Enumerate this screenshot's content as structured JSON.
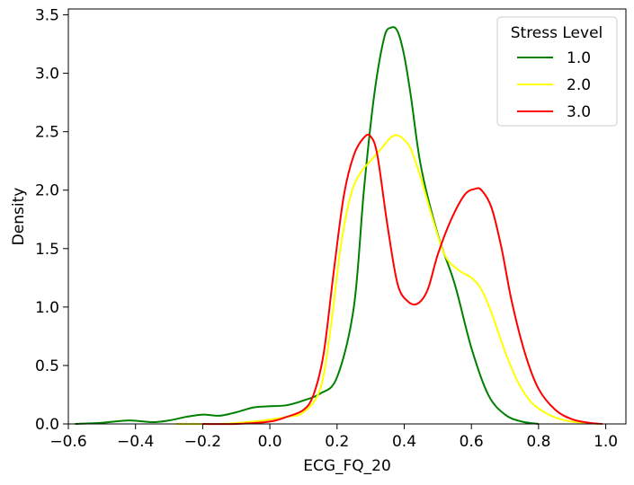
{
  "chart_data": {
    "type": "line",
    "xlabel": "ECG_FQ_20",
    "ylabel": "Density",
    "xlim": [
      -0.6,
      1.06
    ],
    "ylim": [
      0.0,
      3.55
    ],
    "xticks": [
      -0.6,
      -0.4,
      -0.2,
      0.0,
      0.2,
      0.4,
      0.6,
      0.8,
      1.0
    ],
    "xtick_labels": [
      "−0.6",
      "−0.4",
      "−0.2",
      "0.0",
      "0.2",
      "0.4",
      "0.6",
      "0.8",
      "1.0"
    ],
    "yticks": [
      0.0,
      0.5,
      1.0,
      1.5,
      2.0,
      2.5,
      3.0,
      3.5
    ],
    "ytick_labels": [
      "0.0",
      "0.5",
      "1.0",
      "1.5",
      "2.0",
      "2.5",
      "3.0",
      "3.5"
    ],
    "grid": false,
    "legend": {
      "title": "Stress Level",
      "placement": "top-right"
    },
    "series": [
      {
        "name": "1.0",
        "color": "#008000",
        "x": [
          -0.58,
          -0.5,
          -0.42,
          -0.35,
          -0.3,
          -0.25,
          -0.2,
          -0.15,
          -0.1,
          -0.05,
          -0.01,
          0.05,
          0.1,
          0.15,
          0.2,
          0.25,
          0.28,
          0.31,
          0.34,
          0.36,
          0.38,
          0.4,
          0.42,
          0.45,
          0.5,
          0.55,
          0.6,
          0.65,
          0.7,
          0.75,
          0.8
        ],
        "y": [
          0.0,
          0.01,
          0.03,
          0.015,
          0.03,
          0.06,
          0.08,
          0.07,
          0.1,
          0.14,
          0.15,
          0.16,
          0.2,
          0.26,
          0.4,
          1.0,
          2.0,
          2.8,
          3.3,
          3.39,
          3.36,
          3.15,
          2.8,
          2.2,
          1.62,
          1.2,
          0.65,
          0.25,
          0.08,
          0.02,
          0.0
        ]
      },
      {
        "name": "2.0",
        "color": "#ffff00",
        "x": [
          -0.28,
          -0.15,
          -0.05,
          0.05,
          0.1,
          0.15,
          0.18,
          0.21,
          0.24,
          0.27,
          0.3,
          0.33,
          0.36,
          0.38,
          0.4,
          0.42,
          0.45,
          0.48,
          0.52,
          0.56,
          0.6,
          0.63,
          0.66,
          0.7,
          0.74,
          0.78,
          0.83,
          0.88,
          0.93,
          0.98
        ],
        "y": [
          0.0,
          0.0,
          0.02,
          0.06,
          0.1,
          0.3,
          0.8,
          1.5,
          1.95,
          2.15,
          2.25,
          2.35,
          2.45,
          2.47,
          2.43,
          2.35,
          2.1,
          1.8,
          1.45,
          1.32,
          1.25,
          1.15,
          0.95,
          0.62,
          0.35,
          0.18,
          0.08,
          0.03,
          0.01,
          0.0
        ]
      },
      {
        "name": "3.0",
        "color": "#ff0000",
        "x": [
          -0.2,
          -0.1,
          0.0,
          0.05,
          0.1,
          0.13,
          0.16,
          0.19,
          0.22,
          0.25,
          0.28,
          0.3,
          0.32,
          0.35,
          0.38,
          0.41,
          0.44,
          0.47,
          0.5,
          0.54,
          0.58,
          0.61,
          0.63,
          0.66,
          0.69,
          0.72,
          0.76,
          0.8,
          0.85,
          0.9,
          0.95,
          0.99
        ],
        "y": [
          0.0,
          0.0,
          0.02,
          0.06,
          0.12,
          0.25,
          0.6,
          1.3,
          1.95,
          2.3,
          2.45,
          2.46,
          2.3,
          1.7,
          1.2,
          1.05,
          1.03,
          1.15,
          1.45,
          1.75,
          1.96,
          2.01,
          2.0,
          1.85,
          1.5,
          1.05,
          0.6,
          0.3,
          0.12,
          0.04,
          0.01,
          0.0
        ]
      }
    ]
  }
}
